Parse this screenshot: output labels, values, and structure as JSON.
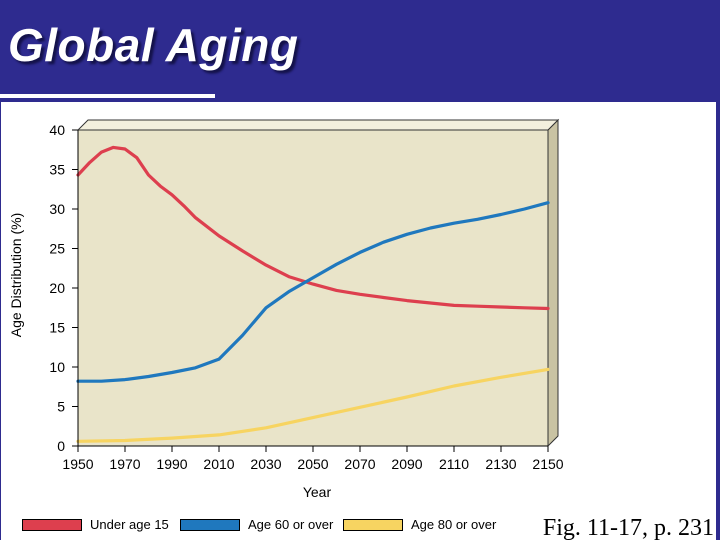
{
  "slide": {
    "title": "Global Aging",
    "caption": "Fig. 11-17, p. 231"
  },
  "chart_data": {
    "type": "line",
    "title": "",
    "xlabel": "Year",
    "ylabel": "Age Distribution (%)",
    "xlim": [
      1950,
      2150
    ],
    "ylim": [
      0,
      40
    ],
    "x_ticks": [
      1950,
      1970,
      1990,
      2010,
      2030,
      2050,
      2070,
      2090,
      2110,
      2130,
      2150
    ],
    "y_ticks": [
      0,
      5,
      10,
      15,
      20,
      25,
      30,
      35,
      40
    ],
    "grid": false,
    "legend_position": "bottom",
    "plot_background": "#e9e4c9",
    "series": [
      {
        "name": "Under age 15",
        "color": "#dd3f4e",
        "x": [
          1950,
          1955,
          1960,
          1965,
          1970,
          1975,
          1980,
          1985,
          1990,
          1995,
          2000,
          2010,
          2020,
          2030,
          2040,
          2050,
          2060,
          2070,
          2080,
          2090,
          2100,
          2110,
          2120,
          2130,
          2140,
          2150
        ],
        "y": [
          34.3,
          35.9,
          37.2,
          37.8,
          37.6,
          36.5,
          34.3,
          32.9,
          31.8,
          30.4,
          28.9,
          26.6,
          24.7,
          22.9,
          21.4,
          20.5,
          19.7,
          19.2,
          18.8,
          18.4,
          18.1,
          17.8,
          17.7,
          17.6,
          17.5,
          17.4
        ]
      },
      {
        "name": "Age 60 or over",
        "color": "#1f78be",
        "x": [
          1950,
          1960,
          1970,
          1980,
          1990,
          2000,
          2010,
          2020,
          2030,
          2040,
          2050,
          2060,
          2070,
          2080,
          2090,
          2100,
          2110,
          2120,
          2130,
          2140,
          2150
        ],
        "y": [
          8.2,
          8.2,
          8.4,
          8.8,
          9.3,
          9.9,
          11.0,
          14.0,
          17.5,
          19.6,
          21.3,
          23.0,
          24.5,
          25.8,
          26.8,
          27.6,
          28.2,
          28.7,
          29.3,
          30.0,
          30.8
        ]
      },
      {
        "name": "Age 80 or over",
        "color": "#f7d461",
        "x": [
          1950,
          1970,
          1990,
          2010,
          2030,
          2050,
          2070,
          2090,
          2110,
          2130,
          2150
        ],
        "y": [
          0.6,
          0.7,
          1.0,
          1.4,
          2.3,
          3.6,
          4.9,
          6.2,
          7.6,
          8.7,
          9.7
        ]
      }
    ]
  }
}
